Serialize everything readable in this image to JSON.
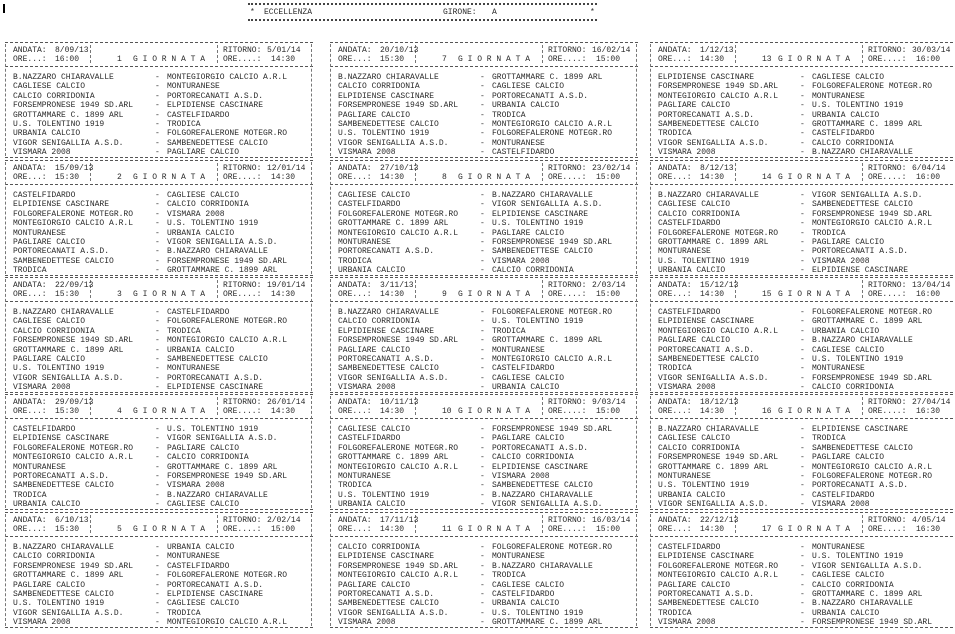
{
  "header": {
    "league": "ECCELLENZA",
    "girone_label": "GIRONE:",
    "girone": "A",
    "star": "*"
  },
  "labels": {
    "andata": "ANDATA:",
    "ritorno": "RITORNO:",
    "ore_andata": "ORE...:",
    "ore_ritorno": "ORE....:",
    "giornata": "G I O R N A T A",
    "separator": "-"
  },
  "rounds": [
    {
      "giornata": "1",
      "andata": "8/09/13",
      "andata_time": "16:00",
      "ritorno": "5/01/14",
      "ritorno_time": "14:30",
      "matches": [
        [
          "B.NAZZARO CHIARAVALLE",
          "MONTEGIORGIO CALCIO A.R.L"
        ],
        [
          "CAGLIESE CALCIO",
          "MONTURANESE"
        ],
        [
          "CALCIO CORRIDONIA",
          "PORTORECANATI A.S.D."
        ],
        [
          "FORSEMPRONESE 1949 SD.ARL",
          "ELPIDIENSE CASCINARE"
        ],
        [
          "GROTTAMMARE C. 1899 ARL",
          "CASTELFIDARDO"
        ],
        [
          "U.S. TOLENTINO 1919",
          "TRODICA"
        ],
        [
          "URBANIA CALCIO",
          "FOLGOREFALERONE MOTEGR.RO"
        ],
        [
          "VIGOR SENIGALLIA A.S.D.",
          "SAMBENEDETTESE CALCIO"
        ],
        [
          "VISMARA 2008",
          "PAGLIARE CALCIO"
        ]
      ]
    },
    {
      "giornata": "2",
      "andata": "15/09/13",
      "andata_time": "15:30",
      "ritorno": "12/01/14",
      "ritorno_time": "14:30",
      "matches": [
        [
          "CASTELFIDARDO",
          "CAGLIESE CALCIO"
        ],
        [
          "ELPIDIENSE CASCINARE",
          "CALCIO CORRIDONIA"
        ],
        [
          "FOLGOREFALERONE MOTEGR.RO",
          "VISMARA 2008"
        ],
        [
          "MONTEGIORGIO CALCIO A.R.L",
          "U.S. TOLENTINO 1919"
        ],
        [
          "MONTURANESE",
          "URBANIA CALCIO"
        ],
        [
          "PAGLIARE CALCIO",
          "VIGOR SENIGALLIA A.S.D."
        ],
        [
          "PORTORECANATI A.S.D.",
          "B.NAZZARO CHIARAVALLE"
        ],
        [
          "SAMBENEDETTESE CALCIO",
          "FORSEMPRONESE 1949 SD.ARL"
        ],
        [
          "TRODICA",
          "GROTTAMMARE C. 1899 ARL"
        ]
      ]
    },
    {
      "giornata": "3",
      "andata": "22/09/13",
      "andata_time": "15:30",
      "ritorno": "19/01/14",
      "ritorno_time": "14:30",
      "matches": [
        [
          "B.NAZZARO CHIARAVALLE",
          "CASTELFIDARDO"
        ],
        [
          "CAGLIESE CALCIO",
          "FOLGOREFALERONE MOTEGR.RO"
        ],
        [
          "CALCIO CORRIDONIA",
          "TRODICA"
        ],
        [
          "FORSEMPRONESE 1949 SD.ARL",
          "MONTEGIORGIO CALCIO A.R.L"
        ],
        [
          "GROTTAMMARE C. 1899 ARL",
          "URBANIA CALCIO"
        ],
        [
          "PAGLIARE CALCIO",
          "SAMBENEDETTESE CALCIO"
        ],
        [
          "U.S. TOLENTINO 1919",
          "MONTURANESE"
        ],
        [
          "VIGOR SENIGALLIA A.S.D.",
          "PORTORECANATI A.S.D."
        ],
        [
          "VISMARA 2008",
          "ELPIDIENSE CASCINARE"
        ]
      ]
    },
    {
      "giornata": "4",
      "andata": "29/09/13",
      "andata_time": "15:30",
      "ritorno": "26/01/14",
      "ritorno_time": "14:30",
      "matches": [
        [
          "CASTELFIDARDO",
          "U.S. TOLENTINO 1919"
        ],
        [
          "ELPIDIENSE CASCINARE",
          "VIGOR SENIGALLIA A.S.D."
        ],
        [
          "FOLGOREFALERONE MOTEGR.RO",
          "PAGLIARE CALCIO"
        ],
        [
          "MONTEGIORGIO CALCIO A.R.L",
          "CALCIO CORRIDONIA"
        ],
        [
          "MONTURANESE",
          "GROTTAMMARE C. 1899 ARL"
        ],
        [
          "PORTORECANATI A.S.D.",
          "FORSEMPRONESE 1949 SD.ARL"
        ],
        [
          "SAMBENEDETTESE CALCIO",
          "VISMARA 2008"
        ],
        [
          "TRODICA",
          "B.NAZZARO CHIARAVALLE"
        ],
        [
          "URBANIA CALCIO",
          "CAGLIESE CALCIO"
        ]
      ]
    },
    {
      "giornata": "5",
      "andata": "6/10/13",
      "andata_time": "15:30",
      "ritorno": "2/02/14",
      "ritorno_time": "15:00",
      "matches": [
        [
          "B.NAZZARO CHIARAVALLE",
          "URBANIA CALCIO"
        ],
        [
          "CALCIO CORRIDONIA",
          "MONTURANESE"
        ],
        [
          "FORSEMPRONESE 1949 SD.ARL",
          "CASTELFIDARDO"
        ],
        [
          "GROTTAMMARE C. 1899 ARL",
          "FOLGOREFALERONE MOTEGR.RO"
        ],
        [
          "PAGLIARE CALCIO",
          "PORTORECANATI A.S.D."
        ],
        [
          "SAMBENEDETTESE CALCIO",
          "ELPIDIENSE CASCINARE"
        ],
        [
          "U.S. TOLENTINO 1919",
          "CAGLIESE CALCIO"
        ],
        [
          "VIGOR SENIGALLIA A.S.D.",
          "TRODICA"
        ],
        [
          "VISMARA 2008",
          "MONTEGIORGIO CALCIO A.R.L"
        ]
      ]
    },
    {
      "giornata": "7",
      "andata": "20/10/13",
      "andata_time": "15:30",
      "ritorno": "16/02/14",
      "ritorno_time": "15:00",
      "matches": [
        [
          "B.NAZZARO CHIARAVALLE",
          "GROTTAMMARE C. 1899 ARL"
        ],
        [
          "CALCIO CORRIDONIA",
          "CAGLIESE CALCIO"
        ],
        [
          "ELPIDIENSE CASCINARE",
          "PORTORECANATI A.S.D."
        ],
        [
          "FORSEMPRONESE 1949 SD.ARL",
          "URBANIA CALCIO"
        ],
        [
          "PAGLIARE CALCIO",
          "TRODICA"
        ],
        [
          "SAMBENEDETTESE CALCIO",
          "MONTEGIORGIO CALCIO A.R.L"
        ],
        [
          "U.S. TOLENTINO 1919",
          "FOLGOREFALERONE MOTEGR.RO"
        ],
        [
          "VIGOR SENIGALLIA A.S.D.",
          "MONTURANESE"
        ],
        [
          "VISMARA 2008",
          "CASTELFIDARDO"
        ]
      ]
    },
    {
      "giornata": "8",
      "andata": "27/10/13",
      "andata_time": "14:30",
      "ritorno": "23/02/14",
      "ritorno_time": "15:00",
      "matches": [
        [
          "CAGLIESE CALCIO",
          "B.NAZZARO CHIARAVALLE"
        ],
        [
          "CASTELFIDARDO",
          "VIGOR SENIGALLIA A.S.D."
        ],
        [
          "FOLGOREFALERONE MOTEGR.RO",
          "ELPIDIENSE CASCINARE"
        ],
        [
          "GROTTAMMARE C. 1899 ARL",
          "U.S. TOLENTINO 1919"
        ],
        [
          "MONTEGIORGIO CALCIO A.R.L",
          "PAGLIARE CALCIO"
        ],
        [
          "MONTURANESE",
          "FORSEMPRONESE 1949 SD.ARL"
        ],
        [
          "PORTORECANATI A.S.D.",
          "SAMBENEDETTESE CALCIO"
        ],
        [
          "TRODICA",
          "VISMARA 2008"
        ],
        [
          "URBANIA CALCIO",
          "CALCIO CORRIDONIA"
        ]
      ]
    },
    {
      "giornata": "9",
      "andata": "3/11/13",
      "andata_time": "14:30",
      "ritorno": "2/03/14",
      "ritorno_time": "15:00",
      "matches": [
        [
          "B.NAZZARO CHIARAVALLE",
          "FOLGOREFALERONE MOTEGR.RO"
        ],
        [
          "CALCIO CORRIDONIA",
          "U.S. TOLENTINO 1919"
        ],
        [
          "ELPIDIENSE CASCINARE",
          "TRODICA"
        ],
        [
          "FORSEMPRONESE 1949 SD.ARL",
          "GROTTAMMARE C. 1899 ARL"
        ],
        [
          "PAGLIARE CALCIO",
          "MONTURANESE"
        ],
        [
          "PORTORECANATI A.S.D.",
          "MONTEGIORGIO CALCIO A.R.L"
        ],
        [
          "SAMBENEDETTESE CALCIO",
          "CASTELFIDARDO"
        ],
        [
          "VIGOR SENIGALLIA A.S.D.",
          "CAGLIESE CALCIO"
        ],
        [
          "VISMARA 2008",
          "URBANIA CALCIO"
        ]
      ]
    },
    {
      "giornata": "10",
      "andata": "10/11/13",
      "andata_time": "14:30",
      "ritorno": "9/03/14",
      "ritorno_time": "15:00",
      "matches": [
        [
          "CAGLIESE CALCIO",
          "FORSEMPRONESE 1949 SD.ARL"
        ],
        [
          "CASTELFIDARDO",
          "PAGLIARE CALCIO"
        ],
        [
          "FOLGOREFALERONE MOTEGR.RO",
          "PORTORECANATI A.S.D."
        ],
        [
          "GROTTAMMARE C. 1899 ARL",
          "CALCIO CORRIDONIA"
        ],
        [
          "MONTEGIORGIO CALCIO A.R.L",
          "ELPIDIENSE CASCINARE"
        ],
        [
          "MONTURANESE",
          "VISMARA 2008"
        ],
        [
          "TRODICA",
          "SAMBENEDETTESE CALCIO"
        ],
        [
          "U.S. TOLENTINO 1919",
          "B.NAZZARO CHIARAVALLE"
        ],
        [
          "URBANIA CALCIO",
          "VIGOR SENIGALLIA A.S.D."
        ]
      ]
    },
    {
      "giornata": "11",
      "andata": "17/11/13",
      "andata_time": "14:30",
      "ritorno": "16/03/14",
      "ritorno_time": "15:00",
      "matches": [
        [
          "CALCIO CORRIDONIA",
          "FOLGOREFALERONE MOTEGR.RO"
        ],
        [
          "ELPIDIENSE CASCINARE",
          "MONTURANESE"
        ],
        [
          "FORSEMPRONESE 1949 SD.ARL",
          "B.NAZZARO CHIARAVALLE"
        ],
        [
          "MONTEGIORGIO CALCIO A.R.L",
          "TRODICA"
        ],
        [
          "PAGLIARE CALCIO",
          "CAGLIESE CALCIO"
        ],
        [
          "PORTORECANATI A.S.D.",
          "CASTELFIDARDO"
        ],
        [
          "SAMBENEDETTESE CALCIO",
          "URBANIA CALCIO"
        ],
        [
          "VIGOR SENIGALLIA A.S.D.",
          "U.S. TOLENTINO 1919"
        ],
        [
          "VISMARA 2008",
          "GROTTAMMARE C. 1899 ARL"
        ]
      ]
    },
    {
      "giornata": "13",
      "andata": "1/12/13",
      "andata_time": "14:30",
      "ritorno": "30/03/14",
      "ritorno_time": "16:00",
      "matches": [
        [
          "ELPIDIENSE CASCINARE",
          "CAGLIESE CALCIO"
        ],
        [
          "FORSEMPRONESE 1949 SD.ARL",
          "FOLGOREFALERONE MOTEGR.RO"
        ],
        [
          "MONTEGIORGIO CALCIO A.R.L",
          "MONTURANESE"
        ],
        [
          "PAGLIARE CALCIO",
          "U.S. TOLENTINO 1919"
        ],
        [
          "PORTORECANATI A.S.D.",
          "URBANIA CALCIO"
        ],
        [
          "SAMBENEDETTESE CALCIO",
          "GROTTAMMARE C. 1899 ARL"
        ],
        [
          "TRODICA",
          "CASTELFIDARDO"
        ],
        [
          "VIGOR SENIGALLIA A.S.D.",
          "CALCIO CORRIDONIA"
        ],
        [
          "VISMARA 2008",
          "B.NAZZARO CHIARAVALLE"
        ]
      ]
    },
    {
      "giornata": "14",
      "andata": "8/12/13",
      "andata_time": "14:30",
      "ritorno": "6/04/14",
      "ritorno_time": "16:00",
      "matches": [
        [
          "B.NAZZARO CHIARAVALLE",
          "VIGOR SENIGALLIA A.S.D."
        ],
        [
          "CAGLIESE CALCIO",
          "SAMBENEDETTESE CALCIO"
        ],
        [
          "CALCIO CORRIDONIA",
          "FORSEMPRONESE 1949 SD.ARL"
        ],
        [
          "CASTELFIDARDO",
          "MONTEGIORGIO CALCIO A.R.L"
        ],
        [
          "FOLGOREFALERONE MOTEGR.RO",
          "TRODICA"
        ],
        [
          "GROTTAMMARE C. 1899 ARL",
          "PAGLIARE CALCIO"
        ],
        [
          "MONTURANESE",
          "PORTORECANATI A.S.D."
        ],
        [
          "U.S. TOLENTINO 1919",
          "VISMARA 2008"
        ],
        [
          "URBANIA CALCIO",
          "ELPIDIENSE CASCINARE"
        ]
      ]
    },
    {
      "giornata": "15",
      "andata": "15/12/13",
      "andata_time": "14:30",
      "ritorno": "13/04/14",
      "ritorno_time": "16:00",
      "matches": [
        [
          "CASTELFIDARDO",
          "FOLGOREFALERONE MOTEGR.RO"
        ],
        [
          "ELPIDIENSE CASCINARE",
          "GROTTAMMARE C. 1899 ARL"
        ],
        [
          "MONTEGIORGIO CALCIO A.R.L",
          "URBANIA CALCIO"
        ],
        [
          "PAGLIARE CALCIO",
          "B.NAZZARO CHIARAVALLE"
        ],
        [
          "PORTORECANATI A.S.D.",
          "CAGLIESE CALCIO"
        ],
        [
          "SAMBENEDETTESE CALCIO",
          "U.S. TOLENTINO 1919"
        ],
        [
          "TRODICA",
          "MONTURANESE"
        ],
        [
          "VIGOR SENIGALLIA A.S.D.",
          "FORSEMPRONESE 1949 SD.ARL"
        ],
        [
          "VISMARA 2008",
          "CALCIO CORRIDONIA"
        ]
      ]
    },
    {
      "giornata": "16",
      "andata": "18/12/13",
      "andata_time": "14:30",
      "ritorno": "27/04/14",
      "ritorno_time": "16:30",
      "matches": [
        [
          "B.NAZZARO CHIARAVALLE",
          "ELPIDIENSE CASCINARE"
        ],
        [
          "CAGLIESE CALCIO",
          "TRODICA"
        ],
        [
          "CALCIO CORRIDONIA",
          "SAMBENEDETTESE CALCIO"
        ],
        [
          "FORSEMPRONESE 1949 SD.ARL",
          "PAGLIARE CALCIO"
        ],
        [
          "GROTTAMMARE C. 1899 ARL",
          "MONTEGIORGIO CALCIO A.R.L"
        ],
        [
          "MONTURANESE",
          "FOLGOREFALERONE MOTEGR.RO"
        ],
        [
          "U.S. TOLENTINO 1919",
          "PORTORECANATI A.S.D."
        ],
        [
          "URBANIA CALCIO",
          "CASTELFIDARDO"
        ],
        [
          "VIGOR SENIGALLIA A.S.D.",
          "VISMARA 2008"
        ]
      ]
    },
    {
      "giornata": "17",
      "andata": "22/12/13",
      "andata_time": "14:30",
      "ritorno": "4/05/14",
      "ritorno_time": "16:30",
      "matches": [
        [
          "CASTELFIDARDO",
          "MONTURANESE"
        ],
        [
          "ELPIDIENSE CASCINARE",
          "U.S. TOLENTINO 1919"
        ],
        [
          "FOLGOREFALERONE MOTEGR.RO",
          "VIGOR SENIGALLIA A.S.D."
        ],
        [
          "MONTEGIORGIO CALCIO A.R.L",
          "CAGLIESE CALCIO"
        ],
        [
          "PAGLIARE CALCIO",
          "CALCIO CORRIDONIA"
        ],
        [
          "PORTORECANATI A.S.D.",
          "GROTTAMMARE C. 1899 ARL"
        ],
        [
          "SAMBENEDETTESE CALCIO",
          "B.NAZZARO CHIARAVALLE"
        ],
        [
          "TRODICA",
          "URBANIA CALCIO"
        ],
        [
          "VISMARA 2008",
          "FORSEMPRONESE 1949 SD.ARL"
        ]
      ]
    }
  ]
}
